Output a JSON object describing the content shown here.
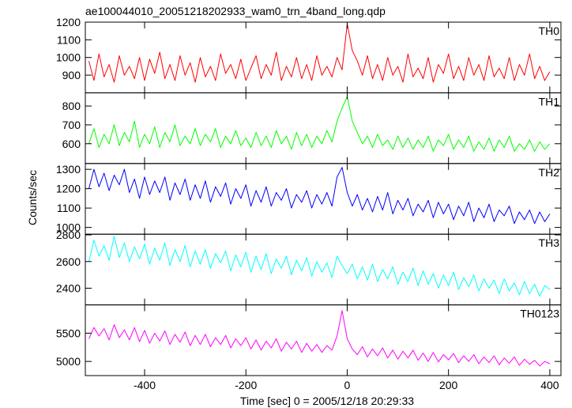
{
  "chart_data": {
    "type": "line",
    "title": "ae100044010_20051218202933_wam0_trn_4band_long.qdp",
    "xlabel": "Time [sec] 0 = 2005/12/18 20:29:33",
    "ylabel": "Counts/sec",
    "xlim": [
      -517,
      422
    ],
    "xticks": [
      -400,
      -200,
      0,
      200,
      400
    ],
    "x": [
      -510,
      -500,
      -490,
      -480,
      -470,
      -460,
      -450,
      -440,
      -430,
      -420,
      -410,
      -400,
      -390,
      -380,
      -370,
      -360,
      -350,
      -340,
      -330,
      -320,
      -310,
      -300,
      -290,
      -280,
      -270,
      -260,
      -250,
      -240,
      -230,
      -220,
      -210,
      -200,
      -190,
      -180,
      -170,
      -160,
      -150,
      -140,
      -130,
      -120,
      -110,
      -100,
      -90,
      -80,
      -70,
      -60,
      -50,
      -40,
      -30,
      -20,
      -10,
      0,
      10,
      20,
      30,
      40,
      50,
      60,
      70,
      80,
      90,
      100,
      110,
      120,
      130,
      140,
      150,
      160,
      170,
      180,
      190,
      200,
      210,
      220,
      230,
      240,
      250,
      260,
      270,
      280,
      290,
      300,
      310,
      320,
      330,
      340,
      350,
      360,
      370,
      380,
      390,
      400
    ],
    "series": [
      {
        "name": "TH0",
        "color": "#ff0000",
        "ylim": [
          800,
          1200
        ],
        "yticks": [
          900,
          1000,
          1100,
          1200
        ],
        "values": [
          980,
          870,
          1020,
          890,
          960,
          860,
          1010,
          900,
          950,
          880,
          1000,
          870,
          990,
          910,
          1030,
          880,
          960,
          870,
          1010,
          900,
          970,
          860,
          1000,
          890,
          950,
          870,
          1020,
          910,
          960,
          880,
          990,
          870,
          940,
          1010,
          880,
          960,
          900,
          1030,
          870,
          950,
          890,
          1000,
          880,
          960,
          870,
          1010,
          900,
          950,
          890,
          1000,
          930,
          1190,
          1040,
          980,
          900,
          1010,
          880,
          960,
          870,
          1000,
          900,
          950,
          860,
          1020,
          890,
          940,
          880,
          1000,
          860,
          960,
          910,
          1020,
          880,
          950,
          870,
          1000,
          900,
          960,
          870,
          1010,
          890,
          940,
          880,
          1000,
          870,
          960,
          900,
          1020,
          880,
          950,
          870,
          920
        ]
      },
      {
        "name": "TH1",
        "color": "#00ff00",
        "ylim": [
          495,
          870
        ],
        "yticks": [
          600,
          700,
          800
        ],
        "values": [
          600,
          680,
          580,
          650,
          600,
          700,
          590,
          660,
          610,
          720,
          580,
          650,
          600,
          690,
          580,
          660,
          610,
          700,
          590,
          640,
          600,
          680,
          590,
          650,
          610,
          680,
          580,
          640,
          600,
          670,
          590,
          630,
          580,
          660,
          590,
          640,
          580,
          670,
          600,
          640,
          570,
          660,
          590,
          650,
          580,
          640,
          600,
          670,
          610,
          720,
          790,
          850,
          720,
          660,
          600,
          640,
          580,
          650,
          590,
          620,
          570,
          640,
          580,
          630,
          570,
          620,
          580,
          640,
          560,
          620,
          590,
          650,
          570,
          620,
          580,
          640,
          560,
          610,
          570,
          630,
          560,
          620,
          580,
          640,
          560,
          600,
          570,
          620,
          560,
          610,
          570,
          600
        ]
      },
      {
        "name": "TH2",
        "color": "#0000ff",
        "ylim": [
          965,
          1330
        ],
        "yticks": [
          1000,
          1100,
          1200,
          1300
        ],
        "values": [
          1200,
          1300,
          1210,
          1280,
          1190,
          1270,
          1220,
          1300,
          1180,
          1250,
          1150,
          1260,
          1170,
          1240,
          1180,
          1260,
          1140,
          1230,
          1170,
          1250,
          1140,
          1220,
          1150,
          1240,
          1130,
          1210,
          1160,
          1230,
          1120,
          1200,
          1150,
          1220,
          1110,
          1190,
          1130,
          1210,
          1110,
          1180,
          1140,
          1200,
          1100,
          1170,
          1130,
          1190,
          1100,
          1170,
          1120,
          1180,
          1110,
          1260,
          1310,
          1180,
          1110,
          1170,
          1090,
          1150,
          1080,
          1160,
          1090,
          1180,
          1070,
          1140,
          1090,
          1150,
          1060,
          1120,
          1080,
          1140,
          1050,
          1130,
          1070,
          1120,
          1040,
          1110,
          1060,
          1130,
          1030,
          1100,
          1050,
          1120,
          1030,
          1090,
          1060,
          1110,
          1020,
          1080,
          1040,
          1090,
          1020,
          1080,
          1030,
          1070
        ]
      },
      {
        "name": "TH3",
        "color": "#00ffff",
        "ylim": [
          2275,
          2805
        ],
        "yticks": [
          2400,
          2600,
          2800
        ],
        "values": [
          2600,
          2760,
          2640,
          2720,
          2610,
          2790,
          2630,
          2740,
          2600,
          2710,
          2620,
          2730,
          2580,
          2700,
          2610,
          2740,
          2570,
          2690,
          2600,
          2720,
          2560,
          2680,
          2580,
          2690,
          2550,
          2660,
          2590,
          2680,
          2530,
          2650,
          2560,
          2670,
          2520,
          2640,
          2540,
          2660,
          2510,
          2620,
          2550,
          2640,
          2500,
          2610,
          2530,
          2630,
          2490,
          2600,
          2520,
          2590,
          2480,
          2640,
          2570,
          2510,
          2580,
          2470,
          2560,
          2460,
          2580,
          2450,
          2540,
          2470,
          2560,
          2430,
          2520,
          2450,
          2550,
          2420,
          2530,
          2430,
          2510,
          2400,
          2500,
          2420,
          2520,
          2390,
          2480,
          2410,
          2500,
          2380,
          2470,
          2400,
          2460,
          2360,
          2470,
          2380,
          2440,
          2350,
          2450,
          2360,
          2430,
          2340,
          2420,
          2390
        ]
      },
      {
        "name": "TH0123",
        "color": "#ff00ff",
        "ylim": [
          4750,
          6000
        ],
        "yticks": [
          5000,
          5500
        ],
        "values": [
          5400,
          5600,
          5450,
          5580,
          5380,
          5650,
          5420,
          5560,
          5380,
          5600,
          5350,
          5550,
          5320,
          5500,
          5360,
          5540,
          5300,
          5480,
          5340,
          5520,
          5280,
          5460,
          5300,
          5480,
          5260,
          5420,
          5300,
          5460,
          5240,
          5400,
          5280,
          5420,
          5220,
          5380,
          5200,
          5360,
          5240,
          5400,
          5180,
          5340,
          5220,
          5360,
          5160,
          5320,
          5180,
          5300,
          5160,
          5280,
          5200,
          5450,
          5900,
          5400,
          5220,
          5120,
          5260,
          5080,
          5220,
          5100,
          5240,
          5060,
          5200,
          5040,
          5180,
          5060,
          5200,
          5020,
          5150,
          5000,
          5160,
          4990,
          5120,
          5030,
          5140,
          4980,
          5100,
          5000,
          5120,
          4960,
          5080,
          4980,
          5100,
          4940,
          5060,
          4970,
          5080,
          4930,
          5040,
          4950,
          5020,
          4920,
          5000,
          4960
        ]
      }
    ]
  }
}
